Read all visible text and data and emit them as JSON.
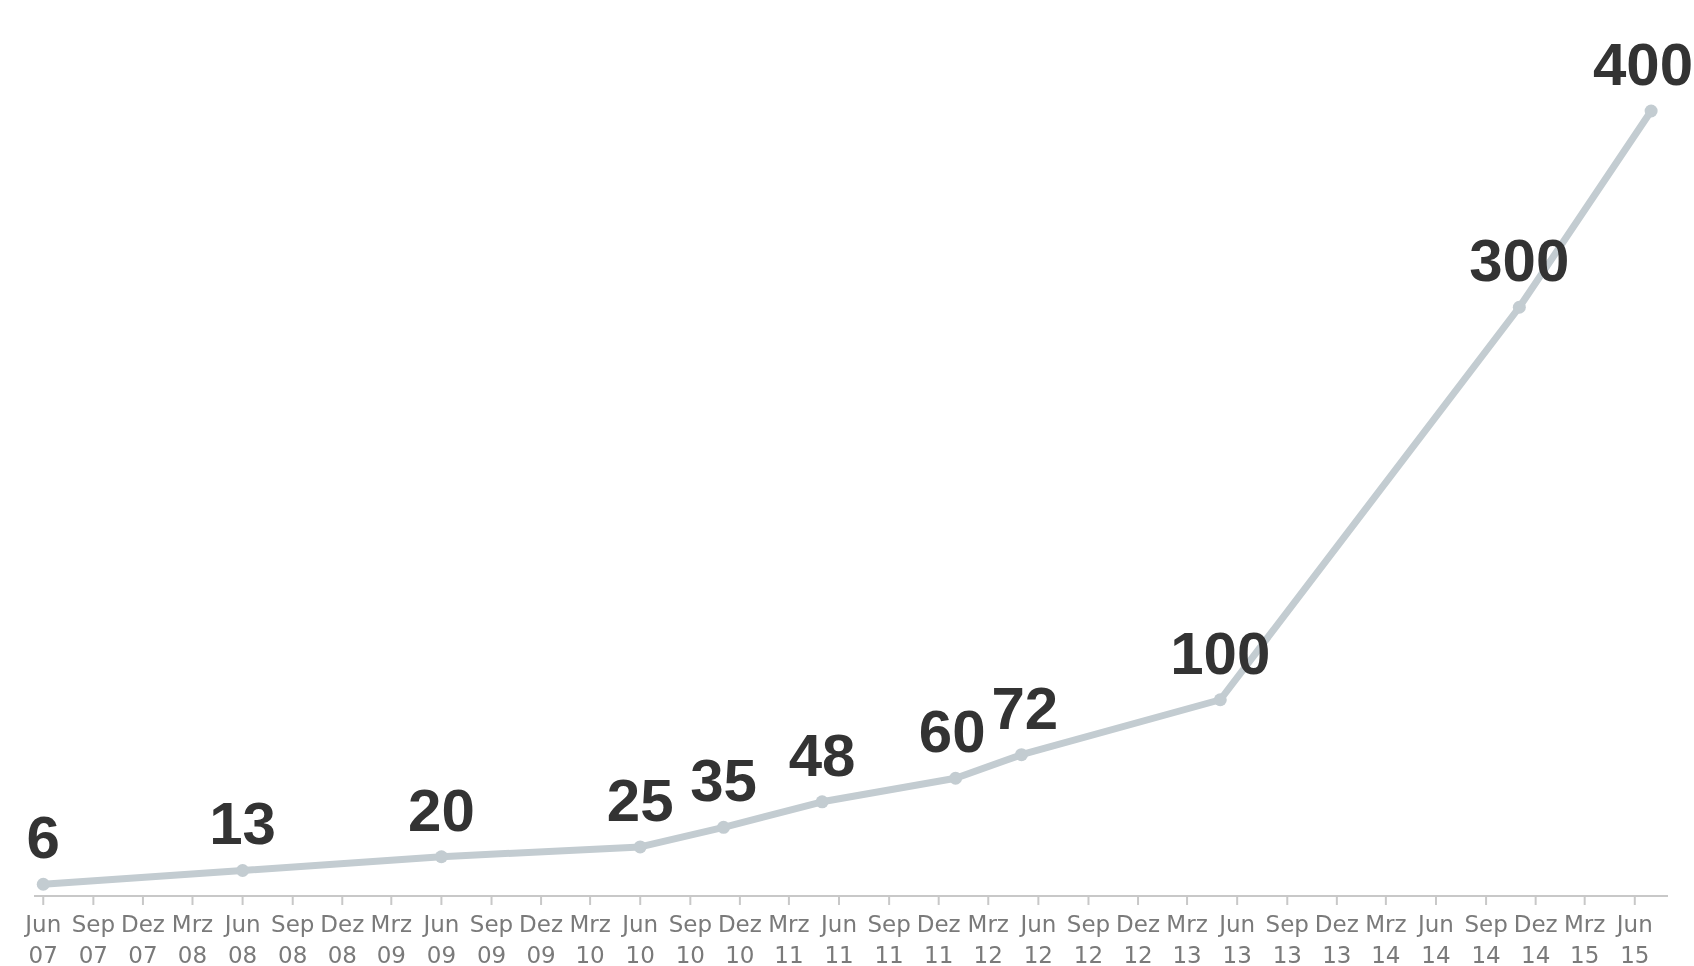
{
  "chart_data": {
    "type": "line",
    "x": [
      "2007-06",
      "2008-06",
      "2009-06",
      "2010-06",
      "2010-11",
      "2011-05",
      "2012-01",
      "2012-05",
      "2013-05",
      "2014-11",
      "2015-07"
    ],
    "series": [
      {
        "color": "#c3ccd1",
        "values": [
          6,
          13,
          20,
          25,
          35,
          48,
          60,
          72,
          100,
          300,
          400
        ]
      }
    ],
    "xlim": [
      "2007-05-15",
      "2015-08-01"
    ],
    "xticks": [
      {
        "value": "2007-06",
        "label": "Jun 07"
      },
      {
        "value": "2007-09",
        "label": "Sep 07"
      },
      {
        "value": "2007-12",
        "label": "Dez 07"
      },
      {
        "value": "2008-03",
        "label": "Mrz 08"
      },
      {
        "value": "2008-06",
        "label": "Jun 08"
      },
      {
        "value": "2008-09",
        "label": "Sep 08"
      },
      {
        "value": "2008-12",
        "label": "Dez 08"
      },
      {
        "value": "2009-03",
        "label": "Mrz 09"
      },
      {
        "value": "2009-06",
        "label": "Jun 09"
      },
      {
        "value": "2009-09",
        "label": "Sep 09"
      },
      {
        "value": "2009-12",
        "label": "Dez 09"
      },
      {
        "value": "2010-03",
        "label": "Mrz 10"
      },
      {
        "value": "2010-06",
        "label": "Jun 10"
      },
      {
        "value": "2010-09",
        "label": "Sep 10"
      },
      {
        "value": "2010-12",
        "label": "Dez 10"
      },
      {
        "value": "2011-03",
        "label": "Mrz 11"
      },
      {
        "value": "2011-06",
        "label": "Jun 11"
      },
      {
        "value": "2011-09",
        "label": "Sep 11"
      },
      {
        "value": "2011-12",
        "label": "Dez 11"
      },
      {
        "value": "2012-03",
        "label": "Mrz 12"
      },
      {
        "value": "2012-06",
        "label": "Jun 12"
      },
      {
        "value": "2012-09",
        "label": "Sep 12"
      },
      {
        "value": "2012-12",
        "label": "Dez 12"
      },
      {
        "value": "2013-03",
        "label": "Mrz 13"
      },
      {
        "value": "2013-06",
        "label": "Jun 13"
      },
      {
        "value": "2013-09",
        "label": "Sep 13"
      },
      {
        "value": "2013-12",
        "label": "Dez 13"
      },
      {
        "value": "2014-03",
        "label": "Mrz 14"
      },
      {
        "value": "2014-06",
        "label": "Jun 14"
      },
      {
        "value": "2014-09",
        "label": "Sep 14"
      },
      {
        "value": "2014-12",
        "label": "Dez 14"
      },
      {
        "value": "2015-03",
        "label": "Mrz 15"
      },
      {
        "value": "2015-06",
        "label": "Jun 15"
      }
    ],
    "data_labels": true,
    "marker": "circle",
    "grid": false
  }
}
